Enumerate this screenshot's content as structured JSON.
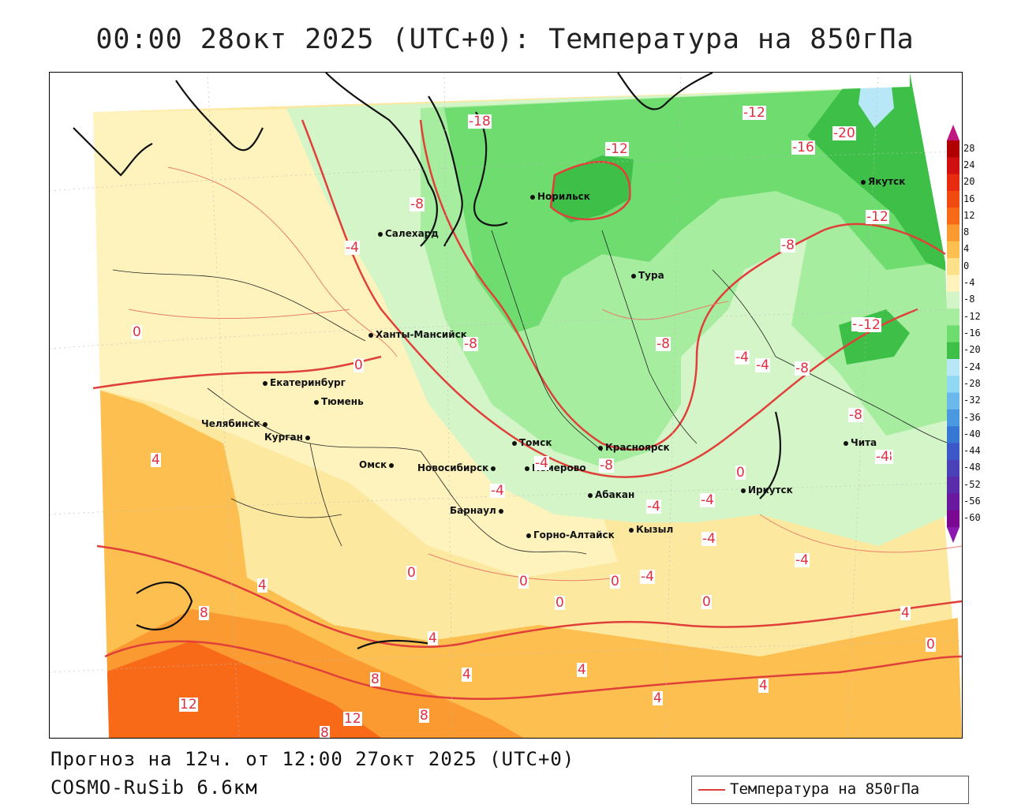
{
  "title": "00:00 28окт 2025 (UTC+0): Температура на 850гПа",
  "forecast_line": "Прогноз на 12ч. от 12:00 27окт 2025 (UTC+0)",
  "model_line": "COSMO-RuSib 6.6км",
  "legend": {
    "label": "Температура на 850гПа",
    "line_color": "#e0403a"
  },
  "colorbar": {
    "labels": [
      "28",
      "24",
      "20",
      "16",
      "12",
      "8",
      "4",
      "0",
      "-4",
      "-8",
      "-12",
      "-16",
      "-20",
      "-24",
      "-28",
      "-32",
      "-36",
      "-40",
      "-44",
      "-48",
      "-52",
      "-56",
      "-60"
    ],
    "colors": [
      "#b00000",
      "#d01010",
      "#e82a10",
      "#f04a10",
      "#f86a18",
      "#fb9a30",
      "#fdc050",
      "#fde08a",
      "#fef3bd",
      "#d4f5c8",
      "#a6eda0",
      "#6edc6e",
      "#3ec048",
      "#b8e8f8",
      "#90d8f4",
      "#6ab8ec",
      "#4a98e0",
      "#3678d4",
      "#3c58c8",
      "#4a40b8",
      "#5a2cac",
      "#6a18a0",
      "#7a0890"
    ]
  },
  "cities": [
    {
      "name": "Салехард"
    },
    {
      "name": "Норильск"
    },
    {
      "name": "Якутск"
    },
    {
      "name": "Тура"
    },
    {
      "name": "Ханты-Мансийск"
    },
    {
      "name": "Екатеринбург"
    },
    {
      "name": "Тюмень"
    },
    {
      "name": "Челябинск"
    },
    {
      "name": "Курган"
    },
    {
      "name": "Омск"
    },
    {
      "name": "Новосибирск"
    },
    {
      "name": "Томск"
    },
    {
      "name": "Кемерово"
    },
    {
      "name": "Красноярск"
    },
    {
      "name": "Абакан"
    },
    {
      "name": "Барнаул"
    },
    {
      "name": "Горно-Алтайск"
    },
    {
      "name": "Кызыл"
    },
    {
      "name": "Иркутск"
    },
    {
      "name": "Чита"
    }
  ],
  "isolabels": [
    "-12",
    "-12",
    "-20",
    "-16",
    "-12",
    "-8",
    "-12",
    "-8",
    "-4",
    "-8",
    "-8",
    "0",
    "0",
    "-8",
    "-4",
    "-4",
    "-8",
    "-8",
    "-4",
    "-4",
    "-4",
    "-8",
    "-4",
    "-4",
    "-4",
    "-4",
    "0",
    "0",
    "0",
    "-4",
    "0",
    "0",
    "4",
    "0",
    "4",
    "8",
    "4",
    "8",
    "4",
    "4",
    "4",
    "4",
    "12",
    "12",
    "8",
    "8",
    "4",
    "0",
    "-18",
    "-12"
  ]
}
